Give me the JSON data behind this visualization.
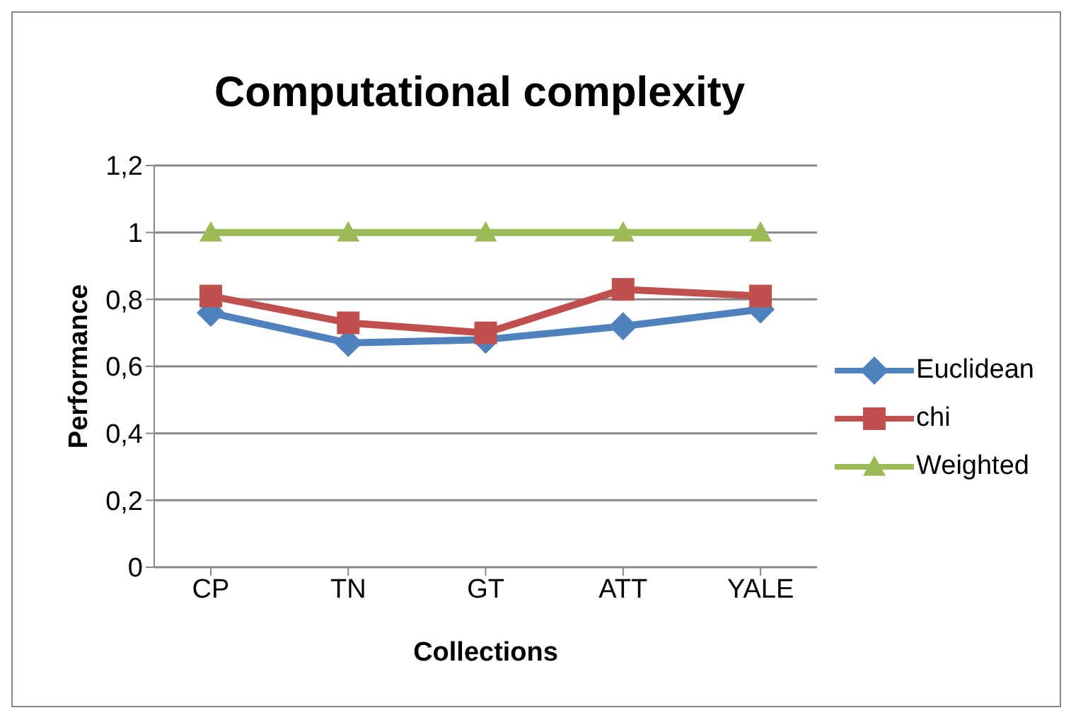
{
  "chart_data": {
    "type": "line",
    "title": "Computational complexity",
    "xlabel": "Collections",
    "ylabel": "Performance",
    "categories": [
      "CP",
      "TN",
      "GT",
      "ATT",
      "YALE"
    ],
    "series": [
      {
        "name": "Euclidean",
        "color": "#4f81bd",
        "marker": "diamond",
        "values": [
          0.76,
          0.67,
          0.68,
          0.72,
          0.77
        ]
      },
      {
        "name": "chi",
        "color": "#c0504d",
        "marker": "square",
        "values": [
          0.81,
          0.73,
          0.7,
          0.83,
          0.81
        ]
      },
      {
        "name": "Weighted",
        "color": "#9bbb59",
        "marker": "triangle",
        "values": [
          1,
          1,
          1,
          1,
          1
        ]
      }
    ],
    "ylim": [
      0,
      1.2
    ],
    "yticks": [
      0,
      {
        "value": 0.2,
        "label": "0,2"
      },
      {
        "value": 0.4,
        "label": "0,4"
      },
      {
        "value": 0.6,
        "label": "0,6"
      },
      {
        "value": 0.8,
        "label": "0,8"
      },
      1,
      {
        "value": 1.2,
        "label": "1,2"
      }
    ],
    "grid": "y",
    "legend": "right",
    "line_style": "solid"
  }
}
